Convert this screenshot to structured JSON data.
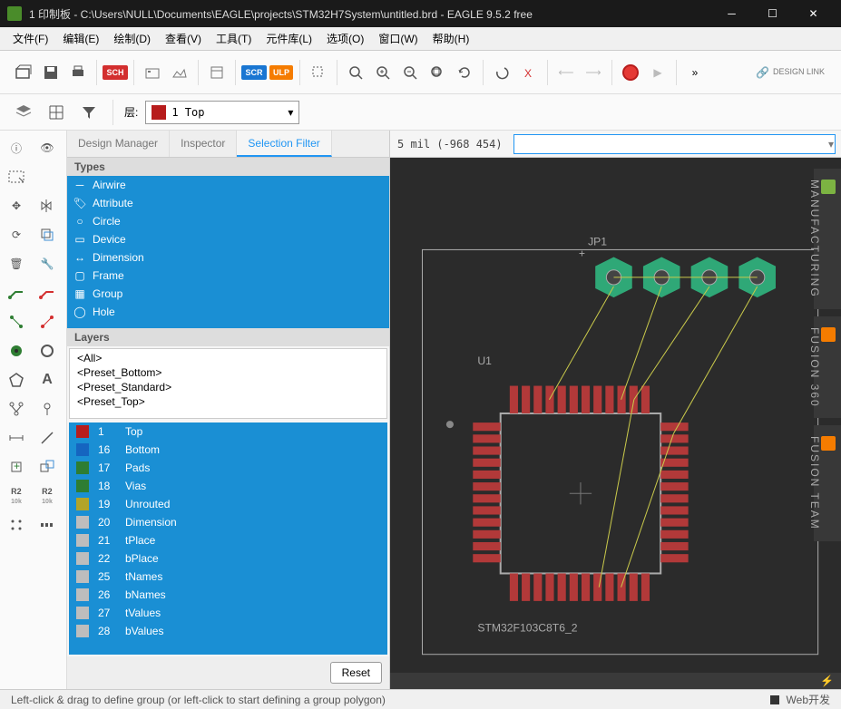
{
  "window": {
    "title": "1 印制板 - C:\\Users\\NULL\\Documents\\EAGLE\\projects\\STM32H7System\\untitled.brd - EAGLE 9.5.2 free"
  },
  "menu": {
    "items": [
      "文件(F)",
      "编辑(E)",
      "绘制(D)",
      "查看(V)",
      "工具(T)",
      "元件库(L)",
      "选项(O)",
      "窗口(W)",
      "帮助(H)"
    ]
  },
  "toolbar": {
    "design_sync": "DESIGN LINK",
    "icons": {
      "open": "open-icon",
      "save": "save-icon",
      "print": "print-icon",
      "sch": "SCH",
      "cam": "cam-icon",
      "mfg": "mfg-icon",
      "lib": "lib-icon",
      "scr": "SCR",
      "ulp": "ULP",
      "sel": "sel-icon",
      "zoomfit": "zoom-fit-icon",
      "zoomin": "zoom-in-icon",
      "zoomout": "zoom-out-icon",
      "zoomwin": "zoom-window-icon",
      "zoomredr": "zoom-redraw-icon",
      "undo": "undo-icon",
      "xref": "xref-icon",
      "back": "back-icon",
      "fwd": "forward-icon",
      "stop": "stop-icon",
      "go": "go-icon",
      "more": "more-icon"
    }
  },
  "layerbar": {
    "label": "层:",
    "current": "1 Top",
    "swatch": "#b71c1c"
  },
  "panel": {
    "tabs": {
      "design": "Design Manager",
      "inspector": "Inspector",
      "filter": "Selection Filter"
    },
    "types_hdr": "Types",
    "types": [
      {
        "icon": "line",
        "label": "Airwire"
      },
      {
        "icon": "tag",
        "label": "Attribute"
      },
      {
        "icon": "circle",
        "label": "Circle"
      },
      {
        "icon": "chip",
        "label": "Device"
      },
      {
        "icon": "dim",
        "label": "Dimension"
      },
      {
        "icon": "frame",
        "label": "Frame"
      },
      {
        "icon": "group",
        "label": "Group"
      },
      {
        "icon": "hole",
        "label": "Hole"
      }
    ],
    "layers_hdr": "Layers",
    "presets": [
      "<All>",
      "<Preset_Bottom>",
      "<Preset_Standard>",
      "<Preset_Top>"
    ],
    "layer_nums": [
      {
        "n": "1",
        "name": "Top",
        "c": "#b71c1c"
      },
      {
        "n": "16",
        "name": "Bottom",
        "c": "#1565c0"
      },
      {
        "n": "17",
        "name": "Pads",
        "c": "#2e7d32"
      },
      {
        "n": "18",
        "name": "Vias",
        "c": "#2e7d32"
      },
      {
        "n": "19",
        "name": "Unrouted",
        "c": "#b2a429"
      },
      {
        "n": "20",
        "name": "Dimension",
        "c": "#bdbdbd"
      },
      {
        "n": "21",
        "name": "tPlace",
        "c": "#bdbdbd"
      },
      {
        "n": "22",
        "name": "bPlace",
        "c": "#bdbdbd"
      },
      {
        "n": "25",
        "name": "tNames",
        "c": "#bdbdbd"
      },
      {
        "n": "26",
        "name": "bNames",
        "c": "#bdbdbd"
      },
      {
        "n": "27",
        "name": "tValues",
        "c": "#bdbdbd"
      },
      {
        "n": "28",
        "name": "bValues",
        "c": "#bdbdbd"
      }
    ],
    "reset": "Reset"
  },
  "canvas": {
    "coord": "5 mil (-968 454)",
    "jp1": "JP1",
    "u1": "U1",
    "chipname": "STM32F103C8T6_2",
    "sidetabs": {
      "mfg": "MANUFACTURING",
      "f360": "FUSION 360",
      "fteam": "FUSION TEAM"
    },
    "colors": {
      "bg": "#2b2b2b",
      "copper": "#b23939",
      "silk": "#aaaaaa",
      "pad": "#2fa877",
      "airwire": "#c9c94b"
    }
  },
  "status": {
    "hint": "Left-click & drag to define group (or left-click to start defining a group polygon)",
    "web": "Web开发"
  }
}
